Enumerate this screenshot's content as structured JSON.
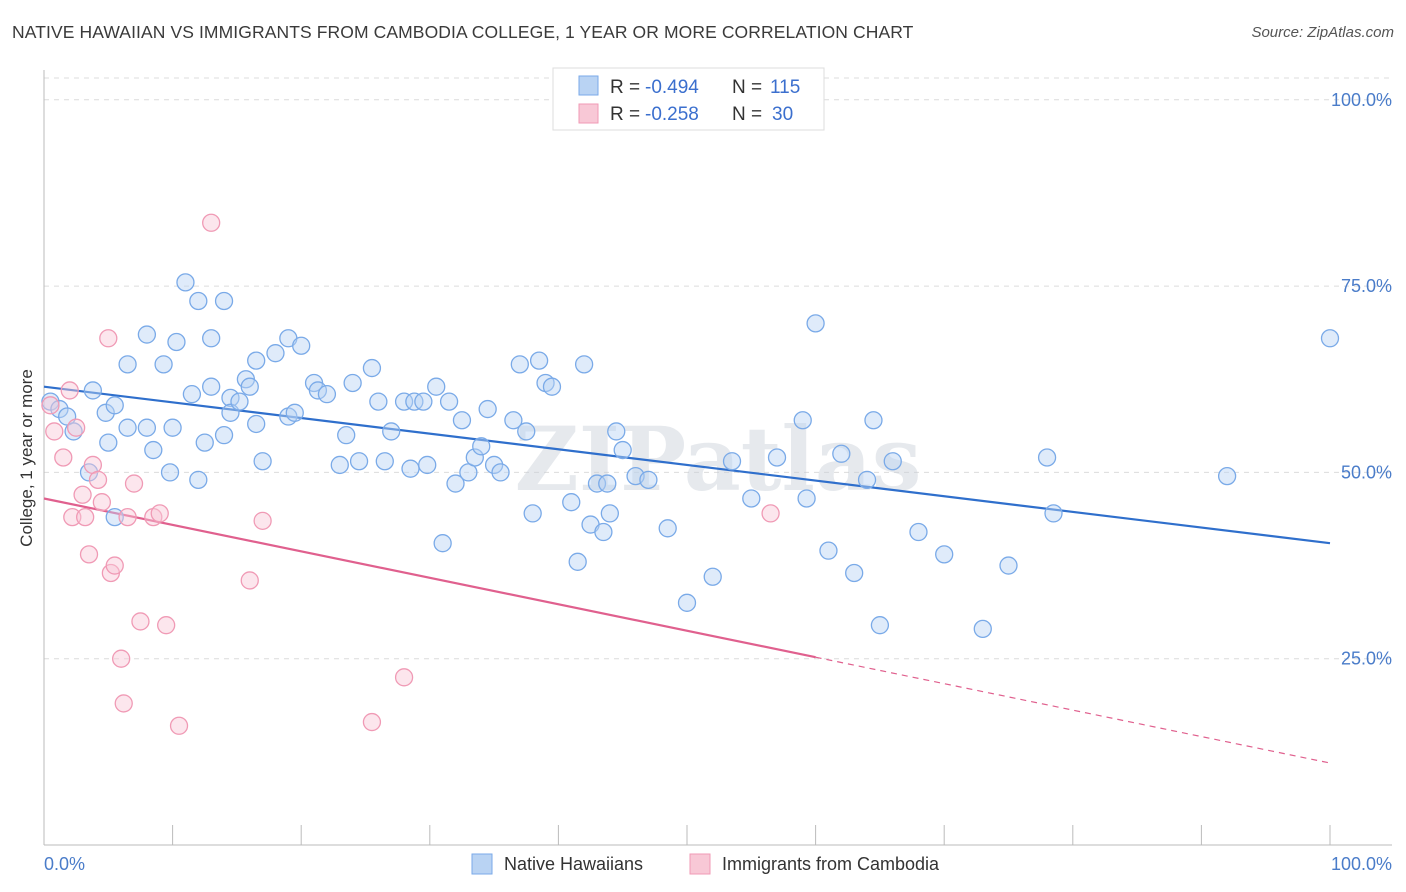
{
  "title": "NATIVE HAWAIIAN VS IMMIGRANTS FROM CAMBODIA COLLEGE, 1 YEAR OR MORE CORRELATION CHART",
  "source": "Source: ZipAtlas.com",
  "watermark": "ZIPatlas",
  "chart_data": {
    "type": "scatter",
    "ylabel": "College, 1 year or more",
    "xlim": [
      0,
      100
    ],
    "ylim": [
      0,
      104
    ],
    "x_tick_labels": [
      "0.0%",
      "100.0%"
    ],
    "y_ticks": [
      25,
      50,
      75,
      100
    ],
    "y_tick_labels": [
      "25.0%",
      "50.0%",
      "75.0%",
      "100.0%"
    ],
    "grid": "horizontal dashed",
    "legend_position": "top-center",
    "legend": {
      "r_label": "R =",
      "n_label": "N =",
      "rows": [
        {
          "r": "-0.494",
          "n": "115"
        },
        {
          "r": "-0.258",
          "n": "30"
        }
      ]
    },
    "series": [
      {
        "name": "Native Hawaiians",
        "color": "#7aaae8",
        "fill": "#b9d3f3",
        "line_color": "#2f6fcc",
        "trend": {
          "x0": 0,
          "y0": 61.5,
          "x1": 100,
          "y1": 40.5,
          "dashed_from": null
        },
        "points": [
          [
            0.5,
            59.5
          ],
          [
            1.2,
            58.5
          ],
          [
            1.8,
            57.5
          ],
          [
            2.3,
            55.5
          ],
          [
            3.5,
            50
          ],
          [
            3.8,
            61
          ],
          [
            4.8,
            58
          ],
          [
            5,
            54
          ],
          [
            5.5,
            59
          ],
          [
            5.5,
            44
          ],
          [
            6.5,
            64.5
          ],
          [
            6.5,
            56
          ],
          [
            8,
            68.5
          ],
          [
            8,
            56
          ],
          [
            8.5,
            53
          ],
          [
            9.3,
            64.5
          ],
          [
            9.8,
            50
          ],
          [
            10,
            56
          ],
          [
            10.3,
            67.5
          ],
          [
            11,
            75.5
          ],
          [
            11.5,
            60.5
          ],
          [
            12,
            73
          ],
          [
            12,
            49
          ],
          [
            12.5,
            54
          ],
          [
            13,
            61.5
          ],
          [
            13,
            68
          ],
          [
            14,
            55
          ],
          [
            14,
            73
          ],
          [
            14.5,
            60
          ],
          [
            14.5,
            58
          ],
          [
            15.2,
            59.5
          ],
          [
            15.7,
            62.5
          ],
          [
            16,
            61.5
          ],
          [
            16.5,
            65
          ],
          [
            16.5,
            56.5
          ],
          [
            17,
            51.5
          ],
          [
            18,
            66
          ],
          [
            19,
            57.5
          ],
          [
            19,
            68
          ],
          [
            19.5,
            58
          ],
          [
            20,
            67
          ],
          [
            21,
            62
          ],
          [
            21.3,
            61
          ],
          [
            22,
            60.5
          ],
          [
            23,
            51
          ],
          [
            23.5,
            55
          ],
          [
            24,
            62
          ],
          [
            24.5,
            51.5
          ],
          [
            25.5,
            64
          ],
          [
            26,
            59.5
          ],
          [
            26.5,
            51.5
          ],
          [
            27,
            55.5
          ],
          [
            28,
            59.5
          ],
          [
            28.5,
            50.5
          ],
          [
            28.8,
            59.5
          ],
          [
            29.5,
            59.5
          ],
          [
            29.8,
            51
          ],
          [
            30.5,
            61.5
          ],
          [
            31,
            40.5
          ],
          [
            31.5,
            59.5
          ],
          [
            32,
            48.5
          ],
          [
            32.5,
            57
          ],
          [
            33,
            50
          ],
          [
            33.5,
            52
          ],
          [
            34,
            53.5
          ],
          [
            34.5,
            58.5
          ],
          [
            35,
            51
          ],
          [
            35.5,
            50
          ],
          [
            36.5,
            57
          ],
          [
            37,
            64.5
          ],
          [
            37.5,
            55.5
          ],
          [
            38,
            44.5
          ],
          [
            38.5,
            65
          ],
          [
            39,
            62
          ],
          [
            39.5,
            61.5
          ],
          [
            41,
            46
          ],
          [
            41.5,
            38
          ],
          [
            42,
            64.5
          ],
          [
            42.5,
            43
          ],
          [
            43,
            48.5
          ],
          [
            43.5,
            42
          ],
          [
            43.8,
            48.5
          ],
          [
            44,
            44.5
          ],
          [
            44.5,
            55.5
          ],
          [
            45,
            53
          ],
          [
            46,
            49.5
          ],
          [
            47,
            49
          ],
          [
            48.5,
            42.5
          ],
          [
            50,
            32.5
          ],
          [
            52,
            36
          ],
          [
            53.5,
            51.5
          ],
          [
            55,
            46.5
          ],
          [
            57,
            52
          ],
          [
            59,
            57
          ],
          [
            59.3,
            46.5
          ],
          [
            60,
            70
          ],
          [
            61,
            39.5
          ],
          [
            62,
            52.5
          ],
          [
            63,
            36.5
          ],
          [
            64,
            49
          ],
          [
            64.5,
            57
          ],
          [
            65,
            29.5
          ],
          [
            66,
            51.5
          ],
          [
            68,
            42
          ],
          [
            70,
            39
          ],
          [
            73,
            29
          ],
          [
            75,
            37.5
          ],
          [
            78,
            52
          ],
          [
            78.5,
            44.5
          ],
          [
            92,
            49.5
          ],
          [
            100,
            68
          ]
        ]
      },
      {
        "name": "Immigrants from Cambodia",
        "color": "#f09ab5",
        "fill": "#f8c8d6",
        "line_color": "#e0608e",
        "trend": {
          "x0": 0,
          "y0": 46.5,
          "x1": 100,
          "y1": 11,
          "dashed_from": 60
        },
        "points": [
          [
            0.5,
            59
          ],
          [
            0.8,
            55.5
          ],
          [
            1.5,
            52
          ],
          [
            2,
            61
          ],
          [
            2.2,
            44
          ],
          [
            2.5,
            56
          ],
          [
            3,
            47
          ],
          [
            3.2,
            44
          ],
          [
            3.5,
            39
          ],
          [
            3.8,
            51
          ],
          [
            4.2,
            49
          ],
          [
            4.5,
            46
          ],
          [
            5,
            68
          ],
          [
            5.2,
            36.5
          ],
          [
            5.5,
            37.5
          ],
          [
            6,
            25
          ],
          [
            6.2,
            19
          ],
          [
            6.5,
            44
          ],
          [
            7,
            48.5
          ],
          [
            7.5,
            30
          ],
          [
            8.5,
            44
          ],
          [
            9,
            44.5
          ],
          [
            9.5,
            29.5
          ],
          [
            10.5,
            16
          ],
          [
            13,
            83.5
          ],
          [
            16,
            35.5
          ],
          [
            17,
            43.5
          ],
          [
            25.5,
            16.5
          ],
          [
            28,
            22.5
          ],
          [
            56.5,
            44.5
          ]
        ]
      }
    ]
  },
  "bottom_legend": [
    "Native Hawaiians",
    "Immigrants from Cambodia"
  ]
}
